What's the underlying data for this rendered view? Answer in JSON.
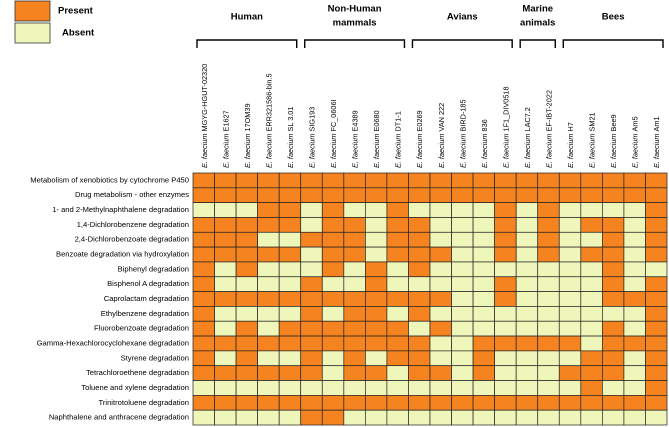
{
  "chart_data": {
    "type": "heatmap",
    "species": "E. faecium",
    "legend": [
      {
        "label": "Present",
        "value": 1,
        "color": "#f5831f"
      },
      {
        "label": "Absent",
        "value": 0,
        "color": "#eff6b9"
      }
    ],
    "groups": [
      {
        "name": [
          "Human"
        ],
        "members": [
          "MGYG-HGUT-02320",
          "E1627",
          "17OM39",
          "ERR321586-bin.5",
          "SL 3.01"
        ]
      },
      {
        "name": [
          "Non-Human",
          "mammals"
        ],
        "members": [
          "SIG193",
          "FC_0606I",
          "E4389",
          "E0680",
          "DT1-1"
        ]
      },
      {
        "name": [
          "Avians"
        ],
        "members": [
          "E0269",
          "VAN 222",
          "BIRD-185",
          "836",
          "1F1_DIV0518"
        ]
      },
      {
        "name": [
          "Marine",
          "animals"
        ],
        "members": [
          "LAC7.2",
          "EF-IBT-2022"
        ]
      },
      {
        "name": [
          "Bees"
        ],
        "members": [
          "H7",
          "SM21",
          "Bee9",
          "Am5",
          "Am1"
        ]
      }
    ],
    "rows": [
      {
        "name": "Metabolism of xenobiotics by cytochrome P450",
        "values": [
          1,
          1,
          1,
          1,
          1,
          1,
          1,
          1,
          1,
          1,
          1,
          1,
          1,
          1,
          1,
          1,
          1,
          1,
          1,
          1,
          1,
          1
        ]
      },
      {
        "name": "Drug metabolism - other enzymes",
        "values": [
          1,
          1,
          1,
          1,
          1,
          1,
          1,
          1,
          1,
          1,
          1,
          1,
          1,
          1,
          1,
          1,
          1,
          1,
          1,
          1,
          1,
          1
        ]
      },
      {
        "name": "1- and 2-Methylnaphthalene degradation",
        "values": [
          0,
          0,
          0,
          1,
          1,
          0,
          1,
          0,
          0,
          1,
          0,
          0,
          0,
          0,
          1,
          0,
          1,
          0,
          0,
          0,
          0,
          1
        ]
      },
      {
        "name": "1,4-Dichlorobenzene degradation",
        "values": [
          1,
          1,
          1,
          1,
          1,
          0,
          1,
          1,
          0,
          1,
          1,
          0,
          0,
          0,
          1,
          0,
          1,
          0,
          1,
          1,
          0,
          1
        ]
      },
      {
        "name": "2,4-Dichlorobenzoate degradation",
        "values": [
          1,
          1,
          1,
          0,
          0,
          1,
          1,
          1,
          0,
          1,
          1,
          0,
          0,
          0,
          1,
          0,
          1,
          0,
          0,
          1,
          0,
          1
        ]
      },
      {
        "name": "Benzoate degradation via hydroxylation",
        "values": [
          1,
          1,
          1,
          1,
          1,
          0,
          1,
          1,
          0,
          1,
          1,
          1,
          0,
          0,
          1,
          0,
          1,
          0,
          1,
          1,
          0,
          1
        ]
      },
      {
        "name": "Biphenyl degradation",
        "values": [
          1,
          0,
          1,
          0,
          0,
          0,
          1,
          0,
          1,
          0,
          1,
          0,
          0,
          0,
          0,
          0,
          0,
          0,
          0,
          1,
          0,
          0
        ]
      },
      {
        "name": "Bisphenol A degradation",
        "values": [
          1,
          0,
          0,
          0,
          0,
          1,
          0,
          0,
          1,
          0,
          0,
          0,
          0,
          0,
          1,
          0,
          0,
          0,
          0,
          1,
          0,
          1
        ]
      },
      {
        "name": "Caprolactam degradation",
        "values": [
          1,
          1,
          1,
          1,
          1,
          1,
          1,
          1,
          1,
          1,
          1,
          1,
          0,
          0,
          1,
          0,
          0,
          0,
          0,
          1,
          1,
          1
        ]
      },
      {
        "name": "Ethylbenzene degradation",
        "values": [
          1,
          0,
          0,
          0,
          0,
          1,
          0,
          1,
          1,
          0,
          1,
          0,
          0,
          0,
          0,
          0,
          0,
          0,
          0,
          0,
          0,
          1
        ]
      },
      {
        "name": "Fluorobenzoate degradation",
        "values": [
          1,
          0,
          1,
          0,
          1,
          1,
          1,
          1,
          1,
          1,
          0,
          1,
          0,
          0,
          0,
          0,
          0,
          0,
          0,
          1,
          0,
          1
        ]
      },
      {
        "name": "Gamma-Hexachlorocyclohexane degradation",
        "values": [
          1,
          1,
          1,
          1,
          1,
          1,
          1,
          1,
          1,
          1,
          1,
          0,
          0,
          1,
          1,
          1,
          1,
          1,
          0,
          1,
          1,
          1
        ]
      },
      {
        "name": "Styrene degradation",
        "values": [
          1,
          0,
          1,
          0,
          0,
          1,
          0,
          1,
          0,
          1,
          1,
          0,
          0,
          1,
          0,
          0,
          0,
          0,
          1,
          1,
          0,
          1
        ]
      },
      {
        "name": "Tetrachloroethene degradation",
        "values": [
          1,
          1,
          1,
          1,
          1,
          1,
          0,
          1,
          1,
          0,
          1,
          1,
          0,
          1,
          0,
          0,
          0,
          1,
          1,
          1,
          0,
          1
        ]
      },
      {
        "name": "Toluene and xylene degradation",
        "values": [
          0,
          0,
          0,
          0,
          0,
          0,
          0,
          0,
          0,
          0,
          0,
          0,
          0,
          0,
          0,
          0,
          0,
          0,
          1,
          0,
          0,
          1
        ]
      },
      {
        "name": "Trinitrotoluene degradation",
        "values": [
          1,
          1,
          1,
          1,
          1,
          1,
          1,
          1,
          1,
          1,
          1,
          1,
          1,
          1,
          1,
          1,
          1,
          1,
          1,
          1,
          1,
          1
        ]
      },
      {
        "name": "Naphthalene and anthracene degradation",
        "values": [
          0,
          0,
          0,
          0,
          0,
          1,
          1,
          0,
          0,
          0,
          0,
          0,
          0,
          0,
          0,
          0,
          0,
          0,
          0,
          0,
          0,
          0
        ]
      }
    ]
  }
}
